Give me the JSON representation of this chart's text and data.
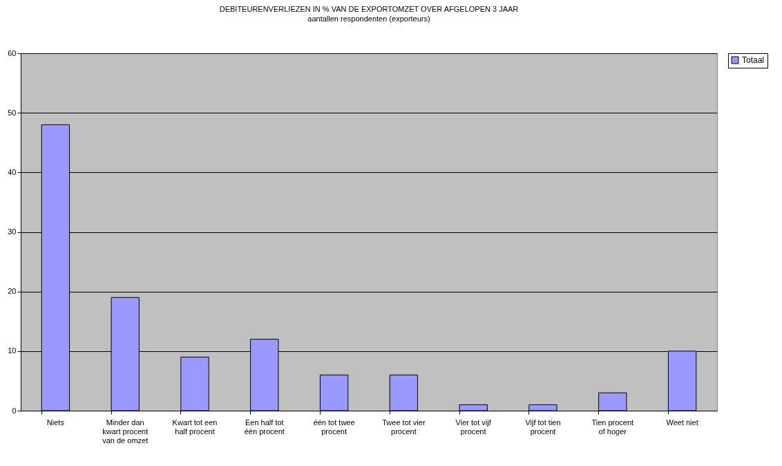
{
  "chart_data": {
    "type": "bar",
    "title": "DEBITEURENVERLIEZEN IN % VAN DE EXPORTOMZET OVER AFGELOPEN 3 JAAR",
    "subtitle": "aantallen respondenten (exporteurs)",
    "categories": [
      "Niets",
      "Minder dan kwart procent van de omzet",
      "Kwart tot een half procent",
      "Een half tot één procent",
      "één tot twee procent",
      "Twee tot vier procent",
      "Vier tot vijf procent",
      "Vijf tot tien procent",
      "Tien procent of hoger",
      "Weet niet"
    ],
    "series": [
      {
        "name": "Totaal",
        "color": "#9999ff",
        "values": [
          48,
          19,
          9,
          12,
          6,
          6,
          1,
          1,
          3,
          10
        ]
      }
    ],
    "ylim": [
      0,
      60
    ],
    "yticks": [
      0,
      10,
      20,
      30,
      40,
      50,
      60
    ],
    "grid": "y",
    "legend": "right"
  }
}
